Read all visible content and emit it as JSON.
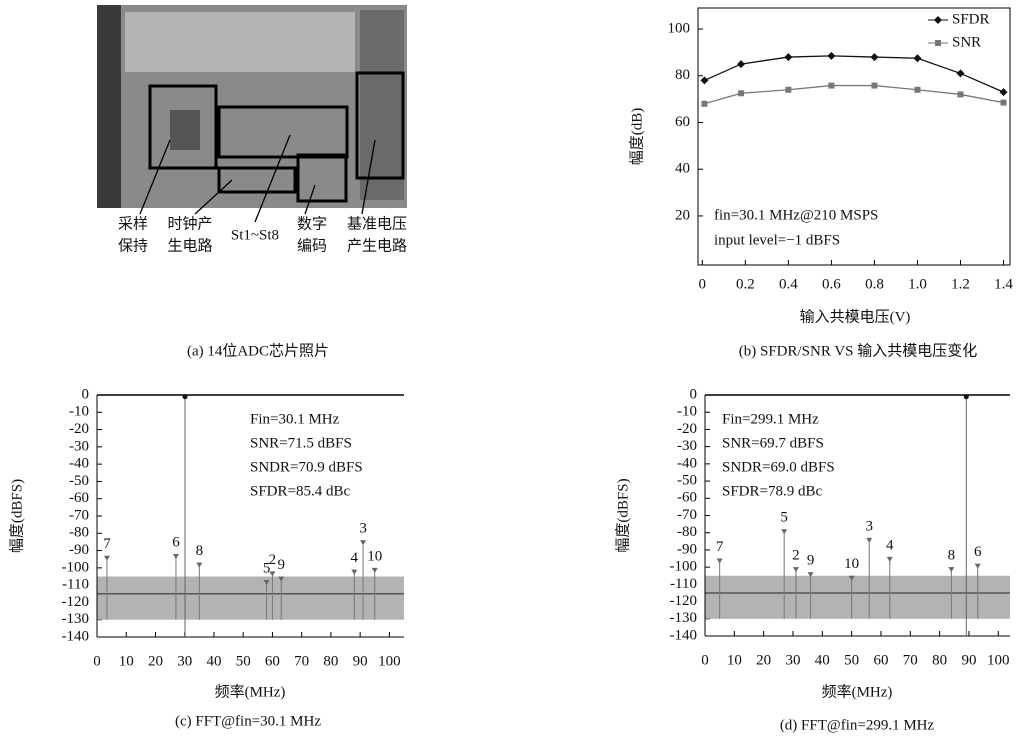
{
  "chart_data": [
    {
      "type": "image",
      "caption": "(a) 14位ADC芯片照片",
      "labels": [
        [
          "采样",
          "保持"
        ],
        [
          "时钟产",
          "生电路"
        ],
        [
          "St1~St8"
        ],
        [
          "数字",
          "编码"
        ],
        [
          "基准电压",
          "产生电路"
        ]
      ]
    },
    {
      "type": "line",
      "caption": "(b) SFDR/SNR VS 输入共模电压变化",
      "xlabel": "输入共模电压(V)",
      "ylabel": "幅度(dB)",
      "x": [
        0.01,
        0.18,
        0.4,
        0.6,
        0.8,
        1.0,
        1.2,
        1.4
      ],
      "series": [
        {
          "name": "SFDR",
          "color": "#111111",
          "marker": "diamond",
          "values": [
            78,
            85,
            88,
            88.5,
            88,
            87.5,
            81,
            73
          ]
        },
        {
          "name": "SNR",
          "color": "#777777",
          "marker": "square",
          "values": [
            68,
            72.5,
            74,
            75.8,
            75.8,
            74,
            72,
            68.5
          ]
        }
      ],
      "xlim": [
        -0.02,
        1.43
      ],
      "ylim": [
        -1,
        109
      ],
      "xticks": [
        0,
        0.2,
        0.4,
        0.6,
        0.8,
        {
          "value": 1,
          "label": "1.0"
        },
        1.2,
        1.4
      ],
      "yticks": [
        20,
        40,
        60,
        80,
        100
      ],
      "legend": "top-right",
      "annotations": [
        "fin=30.1 MHz@210 MSPS",
        "input level=−1 dBFS"
      ]
    },
    {
      "type": "spectrum",
      "caption": "(c) FFT@fin=30.1 MHz",
      "xlabel": "频率(MHz)",
      "ylabel": "幅度(dBFS)",
      "fundamental": {
        "x": 30.1,
        "value": -1
      },
      "spurs": {
        "labels": [
          "7",
          "6",
          "8",
          "5",
          "2",
          "9",
          "4",
          "3",
          "10"
        ],
        "x": [
          3.4,
          27,
          35,
          58,
          60,
          63,
          88,
          91,
          95
        ],
        "values": [
          -93,
          -92,
          -97,
          -107,
          -102,
          -105,
          -101,
          -84,
          -100
        ]
      },
      "noise_band": [
        -130,
        -105
      ],
      "noise_floor": -115,
      "xlim": [
        0,
        105
      ],
      "ylim": [
        -140,
        0
      ],
      "xticks": [
        0,
        10,
        20,
        30,
        40,
        50,
        60,
        70,
        80,
        90,
        100
      ],
      "yticks": [
        0,
        -10,
        -20,
        -30,
        -40,
        -50,
        -60,
        -70,
        -80,
        -90,
        -100,
        -110,
        -120,
        -130,
        -140
      ],
      "annotations": [
        "Fin=30.1 MHz",
        "SNR=71.5 dBFS",
        "SNDR=70.9 dBFS",
        "SFDR=85.4 dBc"
      ]
    },
    {
      "type": "spectrum",
      "caption": "(d) FFT@fin=299.1 MHz",
      "xlabel": "频率(MHz)",
      "ylabel": "幅度(dBFS)",
      "fundamental": {
        "x": 89.1,
        "value": -1
      },
      "spurs": {
        "labels": [
          "7",
          "5",
          "2",
          "9",
          "10",
          "3",
          "4",
          "8",
          "6"
        ],
        "x": [
          5,
          27,
          31,
          36,
          50,
          56,
          63,
          84,
          93
        ],
        "values": [
          -95,
          -78,
          -100,
          -103,
          -105,
          -83,
          -94,
          -100,
          -98
        ]
      },
      "noise_band": [
        -130,
        -105
      ],
      "noise_floor": -115,
      "xlim": [
        0,
        104
      ],
      "ylim": [
        -140,
        0
      ],
      "xticks": [
        0,
        10,
        20,
        30,
        40,
        50,
        60,
        70,
        80,
        90,
        100
      ],
      "yticks": [
        0,
        -10,
        -20,
        -30,
        -40,
        -50,
        -60,
        -70,
        -80,
        -90,
        -100,
        -110,
        -120,
        -130,
        -140
      ],
      "annotations": [
        "Fin=299.1 MHz",
        "SNR=69.7 dBFS",
        "SNDR=69.0 dBFS",
        "SFDR=78.9 dBc"
      ]
    }
  ]
}
